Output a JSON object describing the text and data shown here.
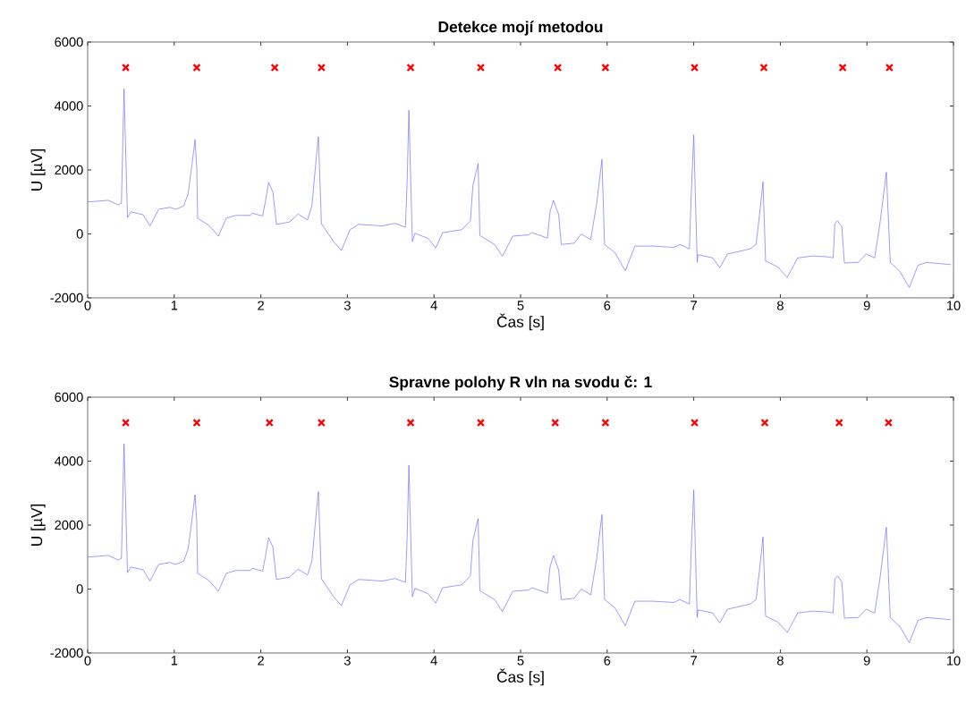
{
  "chart_data": [
    {
      "type": "line",
      "title": "Detekce mojí metodou",
      "xlabel": "Čas [s]",
      "ylabel": "U [µV]",
      "xlim": [
        0,
        10
      ],
      "ylim": [
        -2000,
        6000
      ],
      "xticks": [
        0,
        1,
        2,
        3,
        4,
        5,
        6,
        7,
        8,
        9,
        10
      ],
      "yticks": [
        -2000,
        0,
        2000,
        4000,
        6000
      ],
      "series": [
        {
          "color": "#6a6aff",
          "x": [
            0,
            0.24,
            0.35,
            0.39,
            0.42,
            0.46,
            0.5,
            0.64,
            0.72,
            0.82,
            0.95,
            1.02,
            1.11,
            1.16,
            1.21,
            1.24,
            1.26,
            1.27,
            1.4,
            1.51,
            1.6,
            1.71,
            1.88,
            1.9,
            2.02,
            2.05,
            2.09,
            2.14,
            2.18,
            2.33,
            2.43,
            2.54,
            2.59,
            2.64,
            2.665,
            2.7,
            2.84,
            2.93,
            3.03,
            3.13,
            3.4,
            3.55,
            3.67,
            3.69,
            3.71,
            3.75,
            3.78,
            3.93,
            4.02,
            4.1,
            4.32,
            4.42,
            4.45,
            4.51,
            4.53,
            4.7,
            4.79,
            4.91,
            5.09,
            5.13,
            5.31,
            5.34,
            5.38,
            5.44,
            5.47,
            5.62,
            5.7,
            5.81,
            5.88,
            5.94,
            5.97,
            6.09,
            6.21,
            6.32,
            6.53,
            6.77,
            6.84,
            6.95,
            6.97,
            7.0,
            7.04,
            7.05,
            7.22,
            7.3,
            7.39,
            7.65,
            7.72,
            7.76,
            7.8,
            7.83,
            7.97,
            8.08,
            8.2,
            8.37,
            8.56,
            8.61,
            8.63,
            8.66,
            8.71,
            8.74,
            8.9,
            8.99,
            9.09,
            9.15,
            9.225,
            9.27,
            9.38,
            9.49,
            9.59,
            9.69,
            9.97
          ],
          "values": [
            1000,
            1050,
            910,
            960,
            4540,
            510,
            690,
            600,
            250,
            770,
            830,
            770,
            880,
            1250,
            2280,
            2950,
            2090,
            490,
            270,
            -70,
            490,
            580,
            580,
            650,
            560,
            970,
            1610,
            1300,
            300,
            370,
            620,
            440,
            880,
            2370,
            3040,
            320,
            -240,
            -520,
            130,
            300,
            250,
            330,
            210,
            1630,
            3870,
            -240,
            20,
            -140,
            -440,
            40,
            130,
            410,
            1530,
            2200,
            -50,
            -330,
            -700,
            -70,
            -30,
            40,
            -130,
            690,
            1050,
            600,
            -330,
            -290,
            0,
            -180,
            970,
            2330,
            -330,
            -590,
            -1150,
            -380,
            -380,
            -420,
            -330,
            -470,
            1160,
            3100,
            -890,
            -650,
            -750,
            -1060,
            -630,
            -470,
            -330,
            600,
            1630,
            -850,
            -1030,
            -1360,
            -750,
            -690,
            -720,
            -750,
            320,
            410,
            230,
            -910,
            -890,
            -630,
            -750,
            320,
            1930,
            -890,
            -1170,
            -1680,
            -980,
            -890,
            -960
          ]
        },
        {
          "type": "scatter",
          "color": "#ff0000",
          "marker": "cross",
          "x": [
            0.44,
            1.26,
            2.16,
            2.7,
            3.73,
            4.54,
            5.43,
            5.98,
            7.01,
            7.81,
            8.72,
            9.26
          ],
          "values": [
            5200,
            5200,
            5200,
            5200,
            5200,
            5200,
            5200,
            5200,
            5200,
            5200,
            5200,
            5200
          ]
        }
      ]
    },
    {
      "type": "line",
      "title": "Spravne polohy R vln na svodu č: 1",
      "xlabel": "Čas [s]",
      "ylabel": "U [µV]",
      "xlim": [
        0,
        10
      ],
      "ylim": [
        -2000,
        6000
      ],
      "xticks": [
        0,
        1,
        2,
        3,
        4,
        5,
        6,
        7,
        8,
        9,
        10
      ],
      "yticks": [
        -2000,
        0,
        2000,
        4000,
        6000
      ],
      "series": [
        {
          "color": "#6a6aff",
          "x": [
            0,
            0.24,
            0.35,
            0.39,
            0.42,
            0.46,
            0.5,
            0.64,
            0.72,
            0.82,
            0.95,
            1.02,
            1.11,
            1.16,
            1.21,
            1.24,
            1.26,
            1.27,
            1.4,
            1.51,
            1.6,
            1.71,
            1.88,
            1.9,
            2.02,
            2.05,
            2.09,
            2.14,
            2.18,
            2.33,
            2.43,
            2.54,
            2.59,
            2.64,
            2.665,
            2.7,
            2.84,
            2.93,
            3.03,
            3.13,
            3.4,
            3.55,
            3.67,
            3.69,
            3.71,
            3.75,
            3.78,
            3.93,
            4.02,
            4.1,
            4.32,
            4.42,
            4.45,
            4.51,
            4.53,
            4.7,
            4.79,
            4.91,
            5.09,
            5.13,
            5.31,
            5.34,
            5.38,
            5.44,
            5.47,
            5.62,
            5.7,
            5.81,
            5.88,
            5.94,
            5.97,
            6.09,
            6.21,
            6.32,
            6.53,
            6.77,
            6.84,
            6.95,
            6.97,
            7.0,
            7.04,
            7.05,
            7.22,
            7.3,
            7.39,
            7.65,
            7.72,
            7.76,
            7.8,
            7.83,
            7.97,
            8.08,
            8.2,
            8.37,
            8.56,
            8.61,
            8.63,
            8.66,
            8.71,
            8.74,
            8.9,
            8.99,
            9.09,
            9.15,
            9.225,
            9.27,
            9.38,
            9.49,
            9.59,
            9.69,
            9.97
          ],
          "values": [
            1000,
            1050,
            910,
            960,
            4540,
            510,
            690,
            600,
            250,
            770,
            830,
            770,
            880,
            1250,
            2280,
            2950,
            2090,
            490,
            270,
            -70,
            490,
            580,
            580,
            650,
            560,
            970,
            1610,
            1300,
            300,
            370,
            620,
            440,
            880,
            2370,
            3040,
            320,
            -240,
            -520,
            130,
            300,
            250,
            330,
            210,
            1630,
            3870,
            -240,
            20,
            -140,
            -440,
            40,
            130,
            410,
            1530,
            2200,
            -50,
            -330,
            -700,
            -70,
            -30,
            40,
            -130,
            690,
            1050,
            600,
            -330,
            -290,
            0,
            -180,
            970,
            2330,
            -330,
            -590,
            -1150,
            -380,
            -380,
            -420,
            -330,
            -470,
            1160,
            3100,
            -890,
            -650,
            -750,
            -1060,
            -630,
            -470,
            -330,
            600,
            1630,
            -850,
            -1030,
            -1360,
            -750,
            -690,
            -720,
            -750,
            320,
            410,
            230,
            -910,
            -890,
            -630,
            -750,
            320,
            1930,
            -890,
            -1170,
            -1680,
            -980,
            -890,
            -960
          ]
        },
        {
          "type": "scatter",
          "color": "#ff0000",
          "marker": "cross",
          "x": [
            0.44,
            1.26,
            2.1,
            2.7,
            3.73,
            4.54,
            5.4,
            5.98,
            7.01,
            7.82,
            8.68,
            9.25
          ],
          "values": [
            5200,
            5200,
            5200,
            5200,
            5200,
            5200,
            5200,
            5200,
            5200,
            5200,
            5200,
            5200
          ]
        }
      ]
    }
  ]
}
